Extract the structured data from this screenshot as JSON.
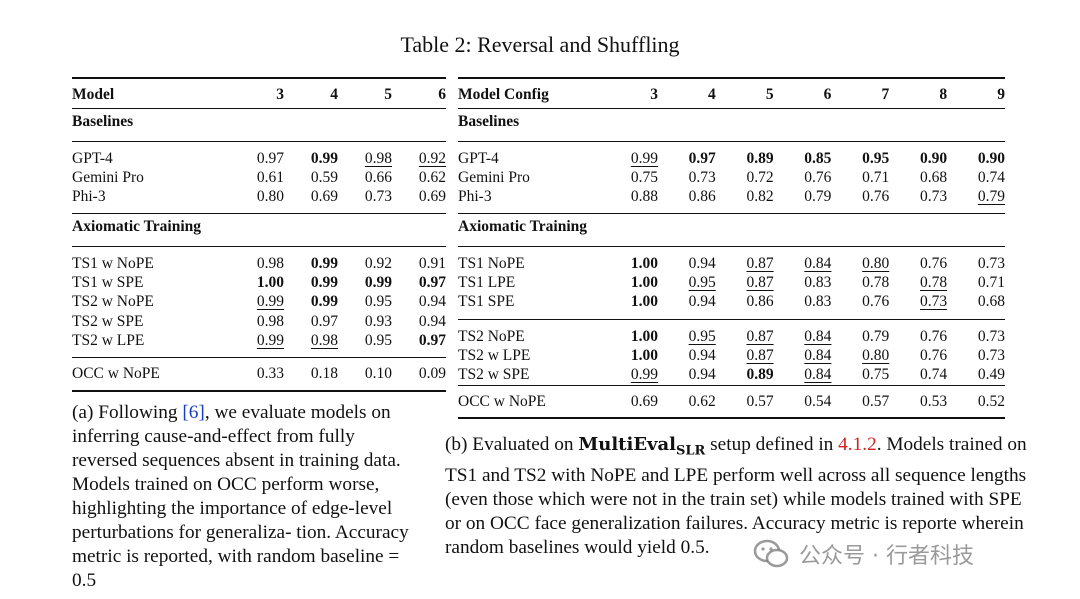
{
  "title": "Table 2: Reversal and Shuffling",
  "table_a": {
    "header": [
      "Model",
      "3",
      "4",
      "5",
      "6"
    ],
    "sections": [
      {
        "name": "Baselines",
        "rows": [
          [
            {
              "t": "GPT-4"
            },
            {
              "t": "0.97"
            },
            {
              "t": "0.99",
              "s": "b"
            },
            {
              "t": "0.98",
              "s": "u"
            },
            {
              "t": "0.92",
              "s": "u"
            }
          ],
          [
            {
              "t": "Gemini Pro"
            },
            {
              "t": "0.61"
            },
            {
              "t": "0.59"
            },
            {
              "t": "0.66"
            },
            {
              "t": "0.62"
            }
          ],
          [
            {
              "t": "Phi-3"
            },
            {
              "t": "0.80"
            },
            {
              "t": "0.69"
            },
            {
              "t": "0.73"
            },
            {
              "t": "0.69"
            }
          ]
        ]
      },
      {
        "name": "Axiomatic Training",
        "rows": [
          [
            {
              "t": "TS1 w NoPE"
            },
            {
              "t": "0.98"
            },
            {
              "t": "0.99",
              "s": "b"
            },
            {
              "t": "0.92"
            },
            {
              "t": "0.91"
            }
          ],
          [
            {
              "t": "TS1 w SPE"
            },
            {
              "t": "1.00",
              "s": "b"
            },
            {
              "t": "0.99",
              "s": "b"
            },
            {
              "t": "0.99",
              "s": "b"
            },
            {
              "t": "0.97",
              "s": "b"
            }
          ],
          [
            {
              "t": "TS2 w NoPE"
            },
            {
              "t": "0.99",
              "s": "u"
            },
            {
              "t": "0.99",
              "s": "b"
            },
            {
              "t": "0.95"
            },
            {
              "t": "0.94"
            }
          ],
          [
            {
              "t": "TS2 w SPE"
            },
            {
              "t": "0.98"
            },
            {
              "t": "0.97"
            },
            {
              "t": "0.93"
            },
            {
              "t": "0.94"
            }
          ],
          [
            {
              "t": "TS2 w LPE"
            },
            {
              "t": "0.99",
              "s": "u"
            },
            {
              "t": "0.98",
              "s": "u"
            },
            {
              "t": "0.95"
            },
            {
              "t": "0.97",
              "s": "b"
            }
          ]
        ]
      }
    ],
    "last": [
      {
        "t": "OCC w NoPE"
      },
      {
        "t": "0.33"
      },
      {
        "t": "0.18"
      },
      {
        "t": "0.10"
      },
      {
        "t": "0.09"
      }
    ]
  },
  "table_b": {
    "header": [
      "Model Config",
      "3",
      "4",
      "5",
      "6",
      "7",
      "8",
      "9"
    ],
    "baselines_label": "Baselines",
    "baselines": [
      [
        {
          "t": "GPT-4"
        },
        {
          "t": "0.99",
          "s": "u"
        },
        {
          "t": "0.97",
          "s": "b"
        },
        {
          "t": "0.89",
          "s": "b"
        },
        {
          "t": "0.85",
          "s": "b"
        },
        {
          "t": "0.95",
          "s": "b"
        },
        {
          "t": "0.90",
          "s": "b"
        },
        {
          "t": "0.90",
          "s": "b"
        }
      ],
      [
        {
          "t": "Gemini Pro"
        },
        {
          "t": "0.75"
        },
        {
          "t": "0.73"
        },
        {
          "t": "0.72"
        },
        {
          "t": "0.76"
        },
        {
          "t": "0.71"
        },
        {
          "t": "0.68"
        },
        {
          "t": "0.74"
        }
      ],
      [
        {
          "t": "Phi-3"
        },
        {
          "t": "0.88"
        },
        {
          "t": "0.86"
        },
        {
          "t": "0.82"
        },
        {
          "t": "0.79"
        },
        {
          "t": "0.76"
        },
        {
          "t": "0.73"
        },
        {
          "t": "0.79",
          "s": "u"
        }
      ]
    ],
    "axiomatic_label": "Axiomatic Training",
    "ts1": [
      [
        {
          "t": "TS1 NoPE"
        },
        {
          "t": "1.00",
          "s": "b"
        },
        {
          "t": "0.94"
        },
        {
          "t": "0.87",
          "s": "u"
        },
        {
          "t": "0.84",
          "s": "u"
        },
        {
          "t": "0.80",
          "s": "u"
        },
        {
          "t": "0.76"
        },
        {
          "t": "0.73"
        }
      ],
      [
        {
          "t": "TS1 LPE"
        },
        {
          "t": "1.00",
          "s": "b"
        },
        {
          "t": "0.95",
          "s": "u"
        },
        {
          "t": "0.87",
          "s": "u"
        },
        {
          "t": "0.83"
        },
        {
          "t": "0.78"
        },
        {
          "t": "0.78",
          "s": "u"
        },
        {
          "t": "0.71"
        }
      ],
      [
        {
          "t": "TS1 SPE"
        },
        {
          "t": "1.00",
          "s": "b"
        },
        {
          "t": "0.94"
        },
        {
          "t": "0.86"
        },
        {
          "t": "0.83"
        },
        {
          "t": "0.76"
        },
        {
          "t": "0.73",
          "s": "u"
        },
        {
          "t": "0.68"
        }
      ]
    ],
    "ts2": [
      [
        {
          "t": "TS2 NoPE"
        },
        {
          "t": "1.00",
          "s": "b"
        },
        {
          "t": "0.95",
          "s": "u"
        },
        {
          "t": "0.87",
          "s": "u"
        },
        {
          "t": "0.84",
          "s": "u"
        },
        {
          "t": "0.79"
        },
        {
          "t": "0.76"
        },
        {
          "t": "0.73"
        }
      ],
      [
        {
          "t": "TS2 w LPE"
        },
        {
          "t": "1.00",
          "s": "b"
        },
        {
          "t": "0.94"
        },
        {
          "t": "0.87",
          "s": "u"
        },
        {
          "t": "0.84",
          "s": "u"
        },
        {
          "t": "0.80",
          "s": "u"
        },
        {
          "t": "0.76"
        },
        {
          "t": "0.73"
        }
      ],
      [
        {
          "t": "TS2 w SPE"
        },
        {
          "t": "0.99",
          "s": "u"
        },
        {
          "t": "0.94"
        },
        {
          "t": "0.89",
          "s": "b"
        },
        {
          "t": "0.84",
          "s": "u"
        },
        {
          "t": "0.75"
        },
        {
          "t": "0.74"
        },
        {
          "t": "0.49"
        }
      ]
    ],
    "last": [
      {
        "t": "OCC w NoPE"
      },
      {
        "t": "0.69"
      },
      {
        "t": "0.62"
      },
      {
        "t": "0.57"
      },
      {
        "t": "0.54"
      },
      {
        "t": "0.57"
      },
      {
        "t": "0.53"
      },
      {
        "t": "0.52"
      }
    ]
  },
  "caption_a": {
    "pre": "(a) Following ",
    "ref": "[6]",
    "post": ", we evaluate models on inferring cause-and-effect from fully reversed sequences absent in training data. Models trained on OCC perform worse, highlighting the importance of edge-level perturbations for generaliza- tion. Accuracy metric is reported, with random baseline = 0.5"
  },
  "caption_b": {
    "pre": "(b) Evaluated on ",
    "setup_main": "MultiEval",
    "setup_sub": "SLR",
    "mid": " setup defined in ",
    "ref": "4.1.2",
    "post": ". Models trained on TS1 and TS2 with NoPE and LPE perform well across all sequence lengths (even those which were not in the train set) while models trained with SPE or on OCC face generalization failures. Accuracy metric is reporte wherein random baselines would yield 0.5."
  },
  "watermark": "公众号 · 行者科技"
}
